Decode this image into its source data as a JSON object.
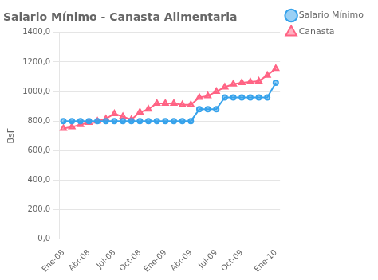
{
  "chart_data": {
    "type": "line",
    "title": "Salario Mínimo - Canasta Alimentaria",
    "y_label": "BsF",
    "categories": [
      "Ene-08",
      null,
      null,
      "Abr-08",
      null,
      null,
      "Jul-08",
      null,
      null,
      "Oct-08",
      null,
      null,
      "Ene-09",
      null,
      null,
      "Abr-09",
      null,
      null,
      "Jul-09",
      null,
      null,
      "Oct-09",
      null,
      null,
      null,
      "Ene-10"
    ],
    "series": [
      {
        "name": "Salario Mínimo",
        "marker": "circle",
        "values": [
          800,
          800,
          800,
          800,
          800,
          800,
          800,
          800,
          800,
          800,
          800,
          800,
          800,
          800,
          800,
          800,
          880,
          880,
          880,
          960,
          960,
          960,
          960,
          960,
          960,
          1060
        ]
      },
      {
        "name": "Canasta",
        "marker": "triangle",
        "values": [
          750,
          760,
          775,
          790,
          800,
          815,
          850,
          830,
          810,
          860,
          880,
          920,
          920,
          920,
          910,
          910,
          960,
          970,
          1000,
          1030,
          1050,
          1060,
          1065,
          1070,
          1110,
          1155
        ]
      }
    ],
    "ylim": [
      0,
      1400
    ],
    "yticks": [
      {
        "value": 0,
        "label": "0,0"
      },
      {
        "value": 200,
        "label": "200,0"
      },
      {
        "value": 400,
        "label": "400,0"
      },
      {
        "value": 600,
        "label": "600,0"
      },
      {
        "value": 800,
        "label": "800,0"
      },
      {
        "value": 1000,
        "label": "1000,0"
      },
      {
        "value": 1200,
        "label": "1200,0"
      },
      {
        "value": 1400,
        "label": "1400,0"
      }
    ],
    "grid": true,
    "legend": "right"
  }
}
